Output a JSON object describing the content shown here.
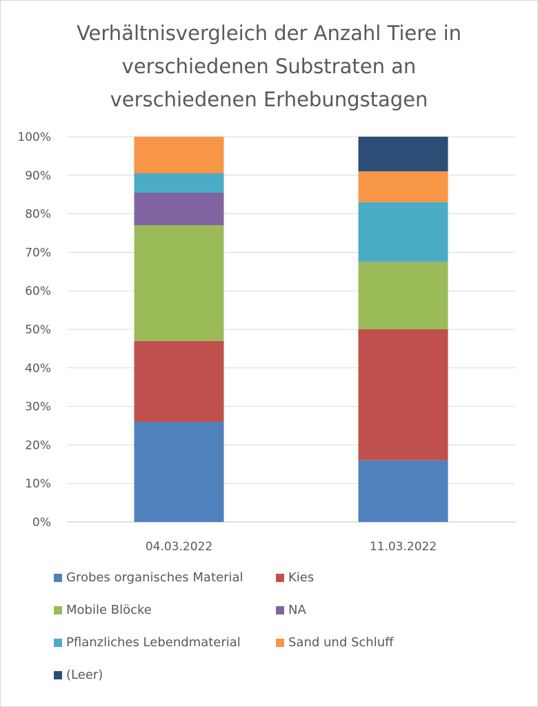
{
  "chart_data": {
    "type": "bar",
    "stacked": "percent",
    "title_lines": [
      "Verhältnisvergleich der Anzahl Tiere in",
      "verschiedenen Substraten an",
      "verschiedenen Erhebungstagen"
    ],
    "categories": [
      "04.03.2022",
      "11.03.2022"
    ],
    "y_ticks": [
      "0%",
      "10%",
      "20%",
      "30%",
      "40%",
      "50%",
      "60%",
      "70%",
      "80%",
      "90%",
      "100%"
    ],
    "ylim": [
      0,
      100
    ],
    "grid": true,
    "legend_position": "bottom",
    "series": [
      {
        "name": "Grobes organisches Material",
        "color": "#4f81bd",
        "values": [
          26,
          16
        ]
      },
      {
        "name": "Kies",
        "color": "#c0504d",
        "values": [
          21,
          34
        ]
      },
      {
        "name": "Mobile Blöcke",
        "color": "#9bbb59",
        "values": [
          30,
          17.5
        ]
      },
      {
        "name": "NA",
        "color": "#8064a2",
        "values": [
          8.5,
          0
        ]
      },
      {
        "name": "Pflanzliches Lebendmaterial",
        "color": "#4bacc6",
        "values": [
          5,
          15.5
        ]
      },
      {
        "name": "Sand und Schluff",
        "color": "#f79646",
        "values": [
          9.5,
          8
        ]
      },
      {
        "name": "(Leer)",
        "color": "#2c4d75",
        "values": [
          0,
          9
        ]
      }
    ]
  }
}
